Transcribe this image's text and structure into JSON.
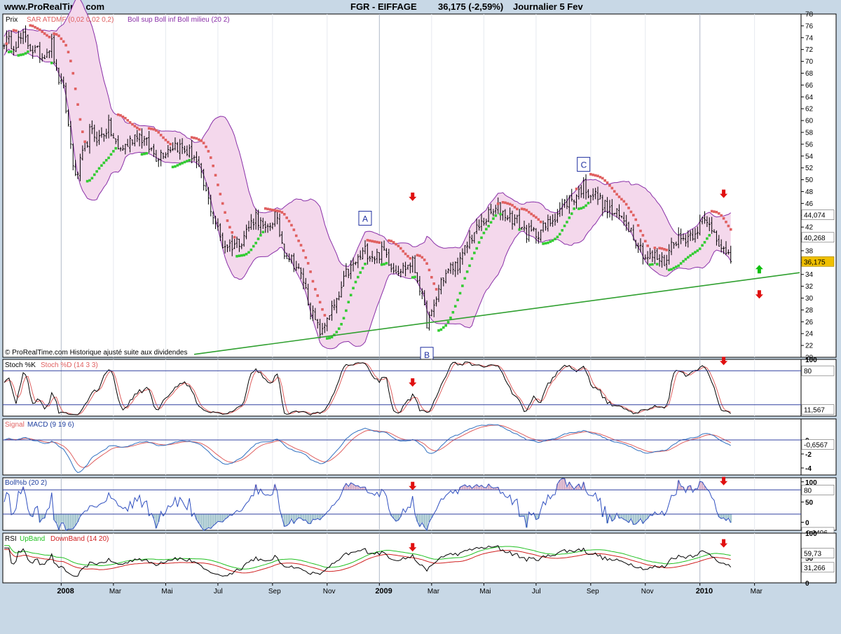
{
  "header": {
    "site": "www.ProRealTime.com",
    "title": "FGR - EIFFAGE",
    "last": "36,175 (-2,59%)",
    "period": "Journalier  5 Fev"
  },
  "colors": {
    "background": "#c8d8e6",
    "panel": "#ffffff",
    "candle": "#000000",
    "sar_up": "#33cc33",
    "sar_down": "#e06060",
    "boll_line": "#8a30a8",
    "boll_fill": "#f4d8ec",
    "trendline": "#30a030",
    "hline": "#3040a0",
    "arrow_down": "#e01010",
    "arrow_up": "#10c010",
    "stoch_k": "#000000",
    "stoch_d": "#e06060",
    "signal": "#e06060",
    "macd": "#3070c0",
    "bollb": "#3050c0",
    "rsi": "#000000",
    "upband": "#20c020",
    "downband": "#d02020",
    "last_price_bg": "#f0c000"
  },
  "copyright": "© ProRealTime.com  Historique ajusté suite aux dividendes",
  "annotations": [
    {
      "label": "A",
      "date_index": 152,
      "price": 43.5
    },
    {
      "label": "B",
      "date_index": 178,
      "price": 20.5
    },
    {
      "label": "C",
      "date_index": 244,
      "price": 52.6
    }
  ],
  "chart_data": [
    {
      "id": "price",
      "type": "candlestick",
      "title": "Prix",
      "legend": [
        "SAR ATDMF (0,02 0,02 0,2)",
        "Boll sup Boll inf Boll milieu (20 2)"
      ],
      "ylim": [
        20,
        78
      ],
      "y_ticks": [
        20,
        22,
        24,
        26,
        28,
        30,
        32,
        34,
        36,
        38,
        40,
        42,
        44,
        46,
        48,
        50,
        52,
        54,
        56,
        58,
        60,
        62,
        64,
        66,
        68,
        70,
        72,
        74,
        76,
        78
      ],
      "x_months": [
        {
          "label": "2008",
          "bold": true,
          "date_index": 24
        },
        {
          "label": "Mar",
          "date_index": 46
        },
        {
          "label": "Mai",
          "date_index": 68
        },
        {
          "label": "Jul",
          "date_index": 90
        },
        {
          "label": "Sep",
          "date_index": 113
        },
        {
          "label": "Nov",
          "date_index": 136
        },
        {
          "label": "2009",
          "bold": true,
          "date_index": 158
        },
        {
          "label": "Mar",
          "date_index": 180
        },
        {
          "label": "Mai",
          "date_index": 202
        },
        {
          "label": "Jul",
          "date_index": 224
        },
        {
          "label": "Sep",
          "date_index": 247
        },
        {
          "label": "Nov",
          "date_index": 270
        },
        {
          "label": "2010",
          "bold": true,
          "date_index": 293
        },
        {
          "label": "Mar",
          "date_index": 316
        }
      ],
      "anchors": [
        [
          0,
          73.5
        ],
        [
          4,
          73
        ],
        [
          8,
          74
        ],
        [
          12,
          72
        ],
        [
          16,
          71
        ],
        [
          20,
          73
        ],
        [
          22,
          68
        ],
        [
          25,
          65
        ],
        [
          28,
          56
        ],
        [
          30,
          50
        ],
        [
          33,
          54
        ],
        [
          36,
          58
        ],
        [
          40,
          57
        ],
        [
          44,
          59
        ],
        [
          48,
          55
        ],
        [
          52,
          56
        ],
        [
          56,
          58
        ],
        [
          60,
          56
        ],
        [
          64,
          54
        ],
        [
          68,
          55
        ],
        [
          72,
          56
        ],
        [
          76,
          55
        ],
        [
          80,
          54
        ],
        [
          84,
          49
        ],
        [
          88,
          44
        ],
        [
          92,
          39
        ],
        [
          96,
          39
        ],
        [
          100,
          40
        ],
        [
          103,
          42
        ],
        [
          106,
          44
        ],
        [
          110,
          41
        ],
        [
          114,
          44
        ],
        [
          118,
          38
        ],
        [
          122,
          36
        ],
        [
          126,
          33
        ],
        [
          129,
          28
        ],
        [
          132,
          25
        ],
        [
          134,
          24
        ],
        [
          136,
          27
        ],
        [
          140,
          29
        ],
        [
          144,
          34
        ],
        [
          148,
          36
        ],
        [
          152,
          38
        ],
        [
          156,
          37
        ],
        [
          160,
          38
        ],
        [
          164,
          35
        ],
        [
          168,
          35
        ],
        [
          172,
          36
        ],
        [
          175,
          32
        ],
        [
          178,
          26
        ],
        [
          180,
          27
        ],
        [
          184,
          33
        ],
        [
          188,
          35
        ],
        [
          192,
          36
        ],
        [
          196,
          40
        ],
        [
          200,
          42
        ],
        [
          204,
          44
        ],
        [
          208,
          45
        ],
        [
          212,
          44
        ],
        [
          216,
          43
        ],
        [
          220,
          41
        ],
        [
          224,
          41
        ],
        [
          228,
          42
        ],
        [
          232,
          44
        ],
        [
          236,
          46
        ],
        [
          240,
          47
        ],
        [
          244,
          49
        ],
        [
          246,
          48
        ],
        [
          250,
          47
        ],
        [
          254,
          45
        ],
        [
          258,
          44
        ],
        [
          262,
          43
        ],
        [
          266,
          40
        ],
        [
          270,
          37
        ],
        [
          274,
          37
        ],
        [
          278,
          36
        ],
        [
          282,
          40
        ],
        [
          286,
          40
        ],
        [
          290,
          41
        ],
        [
          294,
          43
        ],
        [
          298,
          42
        ],
        [
          302,
          39
        ],
        [
          304,
          37
        ],
        [
          306,
          36.2
        ]
      ],
      "last_price": "36,175",
      "right_labels": [
        "44,074",
        "40,268",
        "36,175"
      ],
      "right_label_values": [
        44.074,
        40.268,
        36.175
      ],
      "trendline": {
        "from": [
          80,
          20.5
        ],
        "to": [
          335,
          34.3
        ]
      },
      "arrows": [
        {
          "dir": "down",
          "date_index": 172,
          "price": 47
        },
        {
          "dir": "down",
          "date_index": 303,
          "price": 47.5
        },
        {
          "dir": "up",
          "date_index": 318,
          "price": 35
        },
        {
          "dir": "down",
          "date_index": 318,
          "price": 30.5
        }
      ]
    },
    {
      "id": "stoch",
      "type": "line",
      "title": "Stoch %K",
      "series_names": [
        "Stoch %K",
        "Stoch %D (14 3 3)"
      ],
      "ylim": [
        0,
        100
      ],
      "hlines": [
        80,
        20
      ],
      "y_ticks": [
        100
      ],
      "right_labels": [
        "80",
        "11,567"
      ],
      "right_label_values": [
        80,
        11.567
      ],
      "arrows": [
        {
          "dir": "down",
          "date_index": 172,
          "value": 58
        },
        {
          "dir": "down",
          "date_index": 303,
          "value": 96
        }
      ]
    },
    {
      "id": "macd",
      "type": "line",
      "title": "Signal",
      "series_names": [
        "Signal",
        "MACD (9 19 6)"
      ],
      "ylim": [
        -5,
        3
      ],
      "hlines": [
        0
      ],
      "y_ticks": [
        0,
        -2,
        -4
      ],
      "right_labels": [
        "-0,6567"
      ],
      "right_label_values": [
        -0.6567
      ]
    },
    {
      "id": "bollb",
      "type": "line",
      "title": "Boll%b (20 2)",
      "ylim": [
        -0.2,
        1.1
      ],
      "hlines": [
        0.8,
        0.2
      ],
      "y_ticks": [
        1,
        0.5,
        0
      ],
      "y_tick_labels": [
        "100",
        "50",
        "0"
      ],
      "right_labels": [
        "80",
        "-0,2496"
      ],
      "right_label_values": [
        0.8,
        -0.2496
      ],
      "arrows": [
        {
          "dir": "down",
          "date_index": 172,
          "value": 0.88
        },
        {
          "dir": "down",
          "date_index": 303,
          "value": 1.0
        }
      ]
    },
    {
      "id": "rsi",
      "type": "line",
      "title": "RSI",
      "series_names": [
        "RSI",
        "UpBand",
        "DownBand (14 20)"
      ],
      "ylim": [
        0,
        100
      ],
      "y_ticks": [
        100,
        50,
        0
      ],
      "right_labels": [
        "59,73",
        "31,266"
      ],
      "right_label_values": [
        59.73,
        31.266
      ],
      "arrows": [
        {
          "dir": "down",
          "date_index": 172,
          "value": 70
        },
        {
          "dir": "down",
          "date_index": 303,
          "value": 78
        }
      ]
    }
  ]
}
